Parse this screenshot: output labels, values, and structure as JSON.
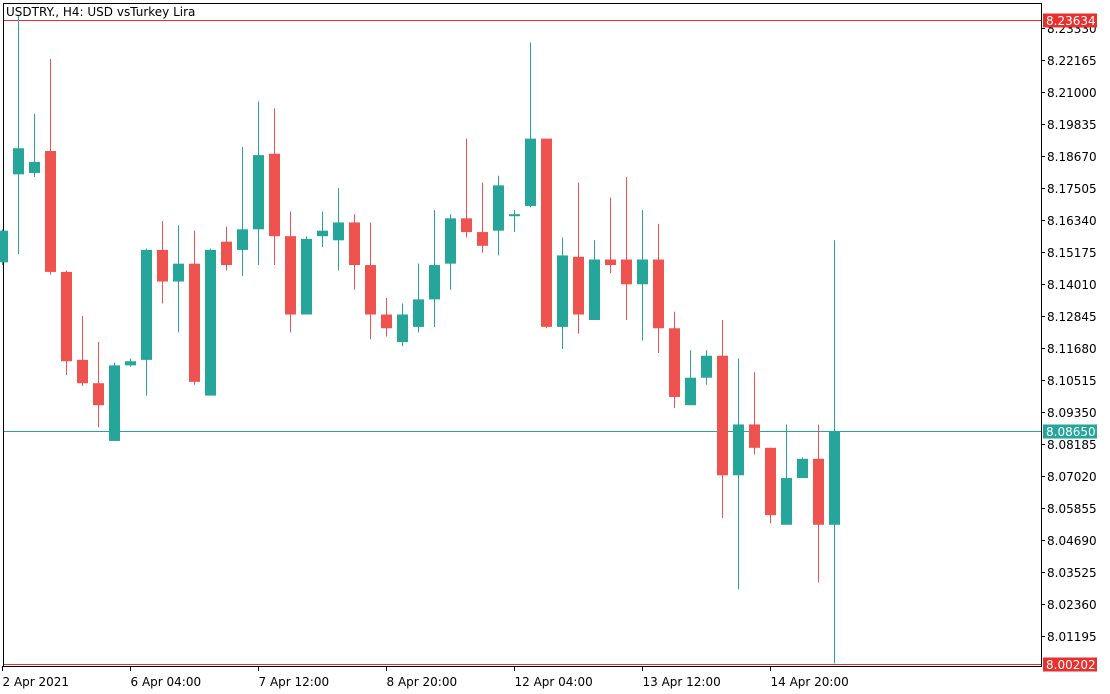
{
  "window": {
    "title": "USDTRY., H4:  USD vsTurkey Lira"
  },
  "chart_data": {
    "type": "candlestick",
    "symbol": "USDTRY.",
    "timeframe": "H4",
    "description": "USD vsTurkey Lira",
    "ylim": [
      8.00202,
      8.23634
    ],
    "y_ticks": [
      "8.23330",
      "8.22165",
      "8.21000",
      "8.19835",
      "8.18670",
      "8.17505",
      "8.16340",
      "8.15175",
      "8.14010",
      "8.12845",
      "8.11680",
      "8.10515",
      "8.09350",
      "8.08185",
      "8.07020",
      "8.05855",
      "8.04690",
      "8.03525",
      "8.02360",
      "8.01195"
    ],
    "x_ticks": [
      {
        "label": "2 Apr 2021",
        "index": 0
      },
      {
        "label": "6 Apr 04:00",
        "index": 8
      },
      {
        "label": "7 Apr 12:00",
        "index": 16
      },
      {
        "label": "8 Apr 20:00",
        "index": 24
      },
      {
        "label": "12 Apr 04:00",
        "index": 32
      },
      {
        "label": "13 Apr 12:00",
        "index": 40
      },
      {
        "label": "14 Apr 20:00",
        "index": 48
      }
    ],
    "hlines": [
      {
        "price": 8.23634,
        "label": "8.23634",
        "color": "#e8312f"
      },
      {
        "price": 8.0865,
        "label": "8.08650",
        "color": "#26a69a"
      },
      {
        "price": 8.00202,
        "label": "8.00202",
        "color": "#e8312f"
      }
    ],
    "colors": {
      "up": "#26a69a",
      "down": "#ef5350"
    },
    "candles": [
      {
        "o": 8.148,
        "h": 8.16,
        "l": 8.147,
        "c": 8.1595
      },
      {
        "o": 8.18,
        "h": 8.238,
        "l": 8.151,
        "c": 8.1895
      },
      {
        "o": 8.1805,
        "h": 8.202,
        "l": 8.179,
        "c": 8.1845
      },
      {
        "o": 8.1885,
        "h": 8.222,
        "l": 8.1435,
        "c": 8.1445
      },
      {
        "o": 8.1445,
        "h": 8.145,
        "l": 8.107,
        "c": 8.112
      },
      {
        "o": 8.1125,
        "h": 8.1285,
        "l": 8.103,
        "c": 8.104
      },
      {
        "o": 8.104,
        "h": 8.119,
        "l": 8.088,
        "c": 8.096
      },
      {
        "o": 8.083,
        "h": 8.1115,
        "l": 8.083,
        "c": 8.1105
      },
      {
        "o": 8.1105,
        "h": 8.113,
        "l": 8.11,
        "c": 8.112
      },
      {
        "o": 8.1125,
        "h": 8.153,
        "l": 8.0995,
        "c": 8.1525
      },
      {
        "o": 8.1525,
        "h": 8.163,
        "l": 8.133,
        "c": 8.141
      },
      {
        "o": 8.141,
        "h": 8.1615,
        "l": 8.1225,
        "c": 8.1475
      },
      {
        "o": 8.1475,
        "h": 8.1595,
        "l": 8.1035,
        "c": 8.1045
      },
      {
        "o": 8.0995,
        "h": 8.153,
        "l": 8.0995,
        "c": 8.1525
      },
      {
        "o": 8.1555,
        "h": 8.161,
        "l": 8.145,
        "c": 8.147
      },
      {
        "o": 8.1525,
        "h": 8.19,
        "l": 8.143,
        "c": 8.16
      },
      {
        "o": 8.16,
        "h": 8.2065,
        "l": 8.147,
        "c": 8.187
      },
      {
        "o": 8.1875,
        "h": 8.204,
        "l": 8.147,
        "c": 8.1575
      },
      {
        "o": 8.1575,
        "h": 8.1665,
        "l": 8.1225,
        "c": 8.129
      },
      {
        "o": 8.129,
        "h": 8.1575,
        "l": 8.129,
        "c": 8.1565
      },
      {
        "o": 8.1575,
        "h": 8.1665,
        "l": 8.1535,
        "c": 8.1595
      },
      {
        "o": 8.156,
        "h": 8.175,
        "l": 8.145,
        "c": 8.1625
      },
      {
        "o": 8.1625,
        "h": 8.1655,
        "l": 8.138,
        "c": 8.147
      },
      {
        "o": 8.147,
        "h": 8.1625,
        "l": 8.12,
        "c": 8.129
      },
      {
        "o": 8.129,
        "h": 8.135,
        "l": 8.121,
        "c": 8.124
      },
      {
        "o": 8.119,
        "h": 8.133,
        "l": 8.1175,
        "c": 8.129
      },
      {
        "o": 8.1245,
        "h": 8.1475,
        "l": 8.1225,
        "c": 8.1345
      },
      {
        "o": 8.1345,
        "h": 8.167,
        "l": 8.1245,
        "c": 8.147
      },
      {
        "o": 8.1475,
        "h": 8.1655,
        "l": 8.138,
        "c": 8.164
      },
      {
        "o": 8.164,
        "h": 8.193,
        "l": 8.157,
        "c": 8.159
      },
      {
        "o": 8.159,
        "h": 8.177,
        "l": 8.1515,
        "c": 8.154
      },
      {
        "o": 8.1595,
        "h": 8.1795,
        "l": 8.1505,
        "c": 8.176
      },
      {
        "o": 8.165,
        "h": 8.167,
        "l": 8.159,
        "c": 8.1655
      },
      {
        "o": 8.1685,
        "h": 8.228,
        "l": 8.168,
        "c": 8.193
      },
      {
        "o": 8.193,
        "h": 8.193,
        "l": 8.124,
        "c": 8.1245
      },
      {
        "o": 8.1245,
        "h": 8.157,
        "l": 8.1165,
        "c": 8.1505
      },
      {
        "o": 8.15,
        "h": 8.177,
        "l": 8.122,
        "c": 8.129
      },
      {
        "o": 8.127,
        "h": 8.156,
        "l": 8.127,
        "c": 8.149
      },
      {
        "o": 8.149,
        "h": 8.1715,
        "l": 8.144,
        "c": 8.147
      },
      {
        "o": 8.149,
        "h": 8.179,
        "l": 8.127,
        "c": 8.14
      },
      {
        "o": 8.14,
        "h": 8.167,
        "l": 8.1195,
        "c": 8.149
      },
      {
        "o": 8.149,
        "h": 8.162,
        "l": 8.115,
        "c": 8.124
      },
      {
        "o": 8.124,
        "h": 8.13,
        "l": 8.095,
        "c": 8.099
      },
      {
        "o": 8.096,
        "h": 8.116,
        "l": 8.096,
        "c": 8.106
      },
      {
        "o": 8.106,
        "h": 8.116,
        "l": 8.1035,
        "c": 8.114
      },
      {
        "o": 8.114,
        "h": 8.127,
        "l": 8.055,
        "c": 8.0705
      },
      {
        "o": 8.0705,
        "h": 8.113,
        "l": 8.029,
        "c": 8.089
      },
      {
        "o": 8.089,
        "h": 8.108,
        "l": 8.078,
        "c": 8.0805
      },
      {
        "o": 8.0805,
        "h": 8.0805,
        "l": 8.053,
        "c": 8.056
      },
      {
        "o": 8.0525,
        "h": 8.089,
        "l": 8.0525,
        "c": 8.0695
      },
      {
        "o": 8.0695,
        "h": 8.077,
        "l": 8.0695,
        "c": 8.0765
      },
      {
        "o": 8.0765,
        "h": 8.089,
        "l": 8.0315,
        "c": 8.0525
      },
      {
        "o": 8.0525,
        "h": 8.156,
        "l": 8.002,
        "c": 8.0865
      }
    ]
  }
}
